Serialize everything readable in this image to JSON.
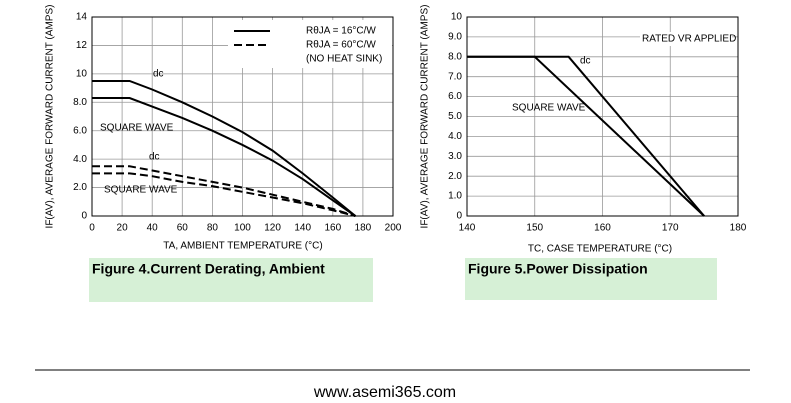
{
  "chart_data": [
    {
      "type": "line",
      "xlabel": "TA, AMBIENT TEMPERATURE (°C)",
      "ylabel": "IF(AV), AVERAGE FORWARD CURRENT (AMPS)",
      "caption": "Figure 4.Current  Derating, Ambient",
      "x": [
        0,
        25,
        40,
        60,
        80,
        100,
        120,
        140,
        160,
        175
      ],
      "xlim": [
        0,
        200
      ],
      "xticks": [
        0,
        20,
        40,
        60,
        80,
        100,
        120,
        140,
        160,
        180,
        200
      ],
      "ylim": [
        0,
        14
      ],
      "yticks": [
        0,
        {
          "value": 2,
          "label": "2.0"
        },
        {
          "value": 4,
          "label": "4.0"
        },
        {
          "value": 6,
          "label": "6.0"
        },
        {
          "value": 8,
          "label": "8.0"
        },
        10,
        12,
        14
      ],
      "grid": true,
      "legend": [
        {
          "label": "RθJA = 16°C/W",
          "dash": false
        },
        {
          "label": "RθJA = 60°C/W",
          "dash": true
        }
      ],
      "legend_note": "(NO HEAT SINK)",
      "series": [
        {
          "label": "dc",
          "dash": false,
          "color": "#000000",
          "values": [
            9.5,
            9.5,
            8.9,
            8.0,
            7.0,
            5.9,
            4.6,
            3.0,
            1.3,
            0
          ]
        },
        {
          "label": "SQUARE WAVE",
          "dash": false,
          "color": "#000000",
          "values": [
            8.3,
            8.3,
            7.7,
            6.9,
            6.0,
            5.0,
            3.9,
            2.6,
            1.1,
            0
          ]
        },
        {
          "label": "dc",
          "dash": true,
          "color": "#000000",
          "values": [
            3.5,
            3.5,
            3.2,
            2.8,
            2.4,
            2.0,
            1.5,
            1.0,
            0.5,
            0
          ]
        },
        {
          "label": "SQUARE WAVE",
          "dash": true,
          "color": "#000000",
          "values": [
            3.0,
            3.0,
            2.8,
            2.4,
            2.1,
            1.7,
            1.3,
            0.9,
            0.4,
            0
          ]
        }
      ]
    },
    {
      "type": "line",
      "xlabel": "TC, CASE TEMPERATURE (°C)",
      "ylabel": "IF(AV), AVERAGE FORWARD CURRENT (AMPS)",
      "caption": "Figure 5.Power  Dissipation",
      "annotation": "RATED VR APPLIED",
      "xlim": [
        140,
        180
      ],
      "xticks": [
        140,
        150,
        160,
        170,
        180
      ],
      "ylim": [
        0,
        10
      ],
      "yticks": [
        0,
        {
          "value": 1,
          "label": "1.0"
        },
        {
          "value": 2,
          "label": "2.0"
        },
        {
          "value": 3,
          "label": "3.0"
        },
        {
          "value": 4,
          "label": "4.0"
        },
        {
          "value": 5,
          "label": "5.0"
        },
        {
          "value": 6,
          "label": "6.0"
        },
        {
          "value": 7,
          "label": "7.0"
        },
        {
          "value": 8,
          "label": "8.0"
        },
        {
          "value": 9,
          "label": "9.0"
        },
        10
      ],
      "grid": true,
      "series": [
        {
          "label": "dc",
          "dash": false,
          "color": "#000000",
          "x": [
            140,
            155,
            175
          ],
          "values": [
            8,
            8,
            0
          ]
        },
        {
          "label": "SQUARE WAVE",
          "dash": false,
          "color": "#000000",
          "x": [
            140,
            150,
            175
          ],
          "values": [
            8,
            8,
            0
          ]
        }
      ]
    }
  ],
  "footer": "www.asemi365.com"
}
